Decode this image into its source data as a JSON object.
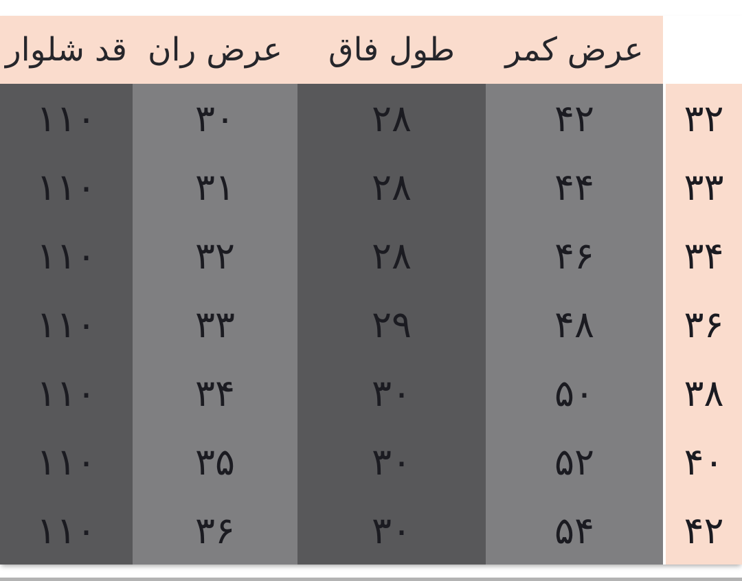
{
  "table": {
    "headers": {
      "size": "",
      "waist": "عرض کمر",
      "rise": "طول فاق",
      "thigh": "عرض ران",
      "length": "قد شلوار"
    },
    "rows": [
      {
        "size": "۳۲",
        "waist": "۴۲",
        "rise": "۲۸",
        "thigh": "۳۰",
        "length": "۱۱۰"
      },
      {
        "size": "۳۳",
        "waist": "۴۴",
        "rise": "۲۸",
        "thigh": "۳۱",
        "length": "۱۱۰"
      },
      {
        "size": "۳۴",
        "waist": "۴۶",
        "rise": "۲۸",
        "thigh": "۳۲",
        "length": "۱۱۰"
      },
      {
        "size": "۳۶",
        "waist": "۴۸",
        "rise": "۲۹",
        "thigh": "۳۳",
        "length": "۱۱۰"
      },
      {
        "size": "۳۸",
        "waist": "۵۰",
        "rise": "۳۰",
        "thigh": "۳۴",
        "length": "۱۱۰"
      },
      {
        "size": "۴۰",
        "waist": "۵۲",
        "rise": "۳۰",
        "thigh": "۳۵",
        "length": "۱۱۰"
      },
      {
        "size": "۴۲",
        "waist": "۵۴",
        "rise": "۳۰",
        "thigh": "۳۶",
        "length": "۱۱۰"
      }
    ]
  },
  "colors": {
    "header_bg": "#fadccd",
    "size_column_bg": "#fadccd",
    "dark_column_bg": "#58585a",
    "light_column_bg": "#7f7f81",
    "text": "#1b1b21",
    "page_bg": "#ffffff",
    "bottom_strip": "#b3b3b3"
  },
  "chart_data": {
    "type": "table",
    "direction": "rtl",
    "digits": "persian-eastern-arabic",
    "size_column_unlabeled": true,
    "columns": [
      {
        "key": "size",
        "header": "",
        "values": [
          32,
          33,
          34,
          36,
          38,
          40,
          42
        ]
      },
      {
        "key": "waist_width",
        "header": "عرض کمر",
        "values": [
          42,
          44,
          46,
          48,
          50,
          52,
          54
        ]
      },
      {
        "key": "rise_length",
        "header": "طول فاق",
        "values": [
          28,
          28,
          28,
          29,
          30,
          30,
          30
        ]
      },
      {
        "key": "thigh_width",
        "header": "عرض ران",
        "values": [
          30,
          31,
          32,
          33,
          34,
          35,
          36
        ]
      },
      {
        "key": "pants_length",
        "header": "قد شلوار",
        "values": [
          110,
          110,
          110,
          110,
          110,
          110,
          110
        ]
      }
    ]
  }
}
